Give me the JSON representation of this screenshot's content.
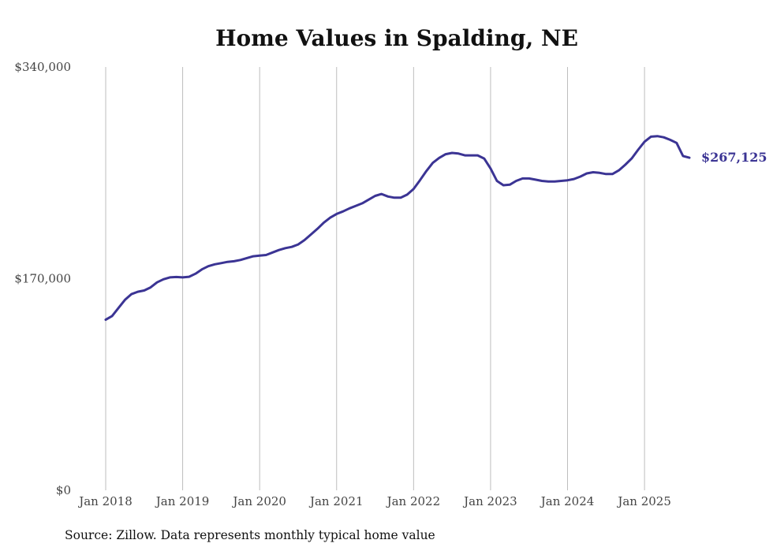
{
  "chart_data": {
    "type": "line",
    "title": "Home Values in Spalding, NE",
    "xlabel": "",
    "ylabel": "",
    "ylim": [
      0,
      340000
    ],
    "y_ticks": [
      0,
      170000,
      340000
    ],
    "y_tick_labels": [
      "$0",
      "$170,000",
      "$340,000"
    ],
    "x_range": [
      2018.0,
      2025.583
    ],
    "x_ticks": [
      2018,
      2019,
      2020,
      2021,
      2022,
      2023,
      2024,
      2025
    ],
    "x_tick_labels": [
      "Jan 2018",
      "Jan 2019",
      "Jan 2020",
      "Jan 2021",
      "Jan 2022",
      "Jan 2023",
      "Jan 2024",
      "Jan 2025"
    ],
    "vertical_grid": true,
    "line_color": "#3b3494",
    "series": [
      {
        "name": "Typical home value",
        "x": [
          2018.0,
          2018.083,
          2018.167,
          2018.25,
          2018.333,
          2018.417,
          2018.5,
          2018.583,
          2018.667,
          2018.75,
          2018.833,
          2018.917,
          2019.0,
          2019.083,
          2019.167,
          2019.25,
          2019.333,
          2019.417,
          2019.5,
          2019.583,
          2019.667,
          2019.75,
          2019.833,
          2019.917,
          2020.0,
          2020.083,
          2020.167,
          2020.25,
          2020.333,
          2020.417,
          2020.5,
          2020.583,
          2020.667,
          2020.75,
          2020.833,
          2020.917,
          2021.0,
          2021.083,
          2021.167,
          2021.25,
          2021.333,
          2021.417,
          2021.5,
          2021.583,
          2021.667,
          2021.75,
          2021.833,
          2021.917,
          2022.0,
          2022.083,
          2022.167,
          2022.25,
          2022.333,
          2022.417,
          2022.5,
          2022.583,
          2022.667,
          2022.75,
          2022.833,
          2022.917,
          2023.0,
          2023.083,
          2023.167,
          2023.25,
          2023.333,
          2023.417,
          2023.5,
          2023.583,
          2023.667,
          2023.75,
          2023.833,
          2023.917,
          2024.0,
          2024.083,
          2024.167,
          2024.25,
          2024.333,
          2024.417,
          2024.5,
          2024.583,
          2024.667,
          2024.75,
          2024.833,
          2024.917,
          2025.0,
          2025.083,
          2025.167,
          2025.25,
          2025.333,
          2025.417,
          2025.5,
          2025.583
        ],
        "values": [
          137000,
          140000,
          146500,
          153000,
          157500,
          159500,
          160500,
          163000,
          167000,
          169500,
          171000,
          171300,
          171000,
          171500,
          174000,
          177500,
          180000,
          181500,
          182500,
          183500,
          184000,
          185000,
          186500,
          188000,
          188500,
          189000,
          191000,
          193000,
          194500,
          195500,
          197500,
          201000,
          205500,
          210000,
          215000,
          219000,
          222000,
          224000,
          226500,
          228500,
          230500,
          233500,
          236500,
          238000,
          236000,
          235000,
          235000,
          237500,
          242000,
          249000,
          256500,
          263000,
          267000,
          270000,
          271000,
          270500,
          269000,
          269000,
          269000,
          266500,
          258500,
          248500,
          245000,
          245500,
          248500,
          250500,
          250500,
          249500,
          248500,
          248000,
          248000,
          248500,
          249000,
          250000,
          252000,
          254500,
          255500,
          255000,
          254000,
          254000,
          257000,
          261500,
          266500,
          273500,
          280000,
          284000,
          284500,
          283500,
          281500,
          279000,
          268500,
          267125
        ]
      }
    ],
    "end_label": "$267,125",
    "note": "Source: Zillow. Data represents monthly typical home value"
  }
}
